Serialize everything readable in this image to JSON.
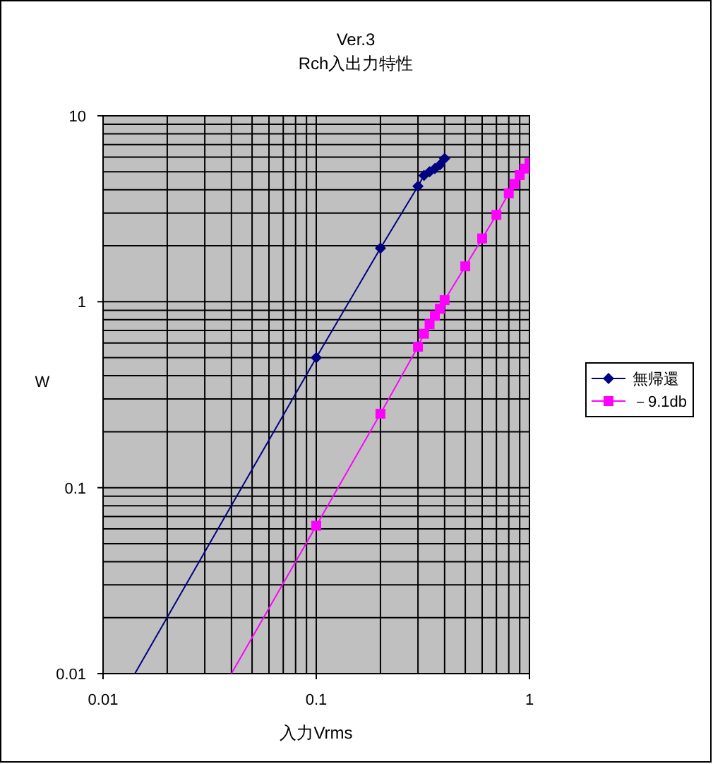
{
  "chart_data": {
    "type": "line",
    "title": "Ver.3",
    "subtitle": "Rch入出力特性",
    "xlabel": "入力Vrms",
    "ylabel": "W",
    "log": "xy",
    "xlim": [
      0.01,
      1
    ],
    "ylim": [
      0.01,
      10
    ],
    "xticks": [
      0.01,
      0.1,
      1
    ],
    "yticks": [
      0.01,
      0.1,
      1,
      10
    ],
    "grid": true,
    "legend": "right",
    "series": [
      {
        "name": "無帰還",
        "color": "#000080",
        "marker": "diamond",
        "x": [
          0.1,
          0.2,
          0.3,
          0.32,
          0.34,
          0.36,
          0.38,
          0.4
        ],
        "values": [
          0.5,
          1.94,
          4.18,
          4.78,
          5.0,
          5.2,
          5.45,
          5.89
        ]
      },
      {
        "name": "－9.1db",
        "color": "#ff00ff",
        "marker": "square",
        "x": [
          0.1,
          0.2,
          0.3,
          0.32,
          0.34,
          0.36,
          0.38,
          0.4,
          0.5,
          0.6,
          0.7,
          0.8,
          0.85,
          0.9,
          0.95,
          1.0
        ],
        "values": [
          0.0624,
          0.25,
          0.573,
          0.673,
          0.757,
          0.84,
          0.916,
          1.02,
          1.55,
          2.19,
          2.93,
          3.83,
          4.3,
          4.8,
          5.2,
          5.56
        ]
      },
      {
        "type": "line",
        "color": "#000080",
        "marker": "none",
        "x": [
          0.0141,
          0.1
        ],
        "values": [
          0.01,
          0.5
        ]
      },
      {
        "type": "line",
        "color": "#ff00ff",
        "marker": "none",
        "x": [
          0.04,
          0.1
        ],
        "values": [
          0.01,
          0.0624
        ]
      }
    ]
  }
}
